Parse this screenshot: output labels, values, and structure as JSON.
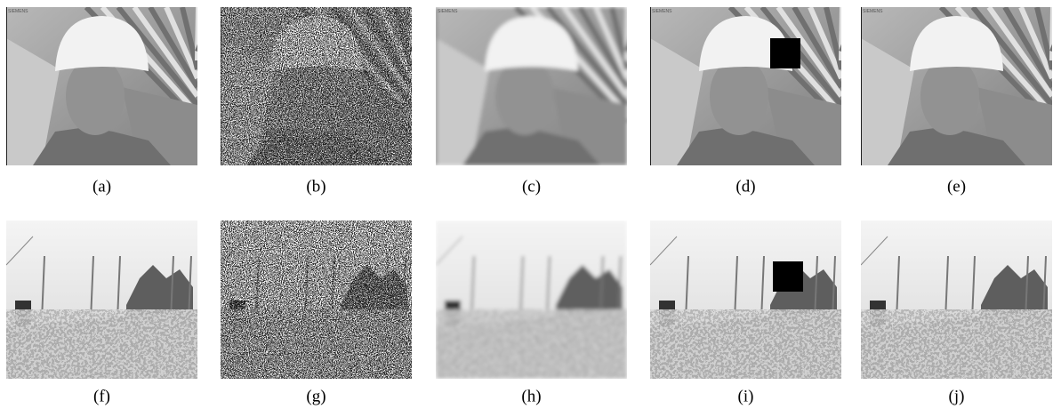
{
  "figure": {
    "rows": [
      {
        "watermark": "SIEMENS",
        "panels": [
          {
            "caption": "(a)"
          },
          {
            "caption": "(b)"
          },
          {
            "caption": "(c)"
          },
          {
            "caption": "(d)"
          },
          {
            "caption": "(e)"
          }
        ]
      },
      {
        "panels": [
          {
            "caption": "(f)"
          },
          {
            "caption": "(g)"
          },
          {
            "caption": "(h)"
          },
          {
            "caption": "(i)"
          },
          {
            "caption": "(j)"
          }
        ]
      }
    ]
  }
}
